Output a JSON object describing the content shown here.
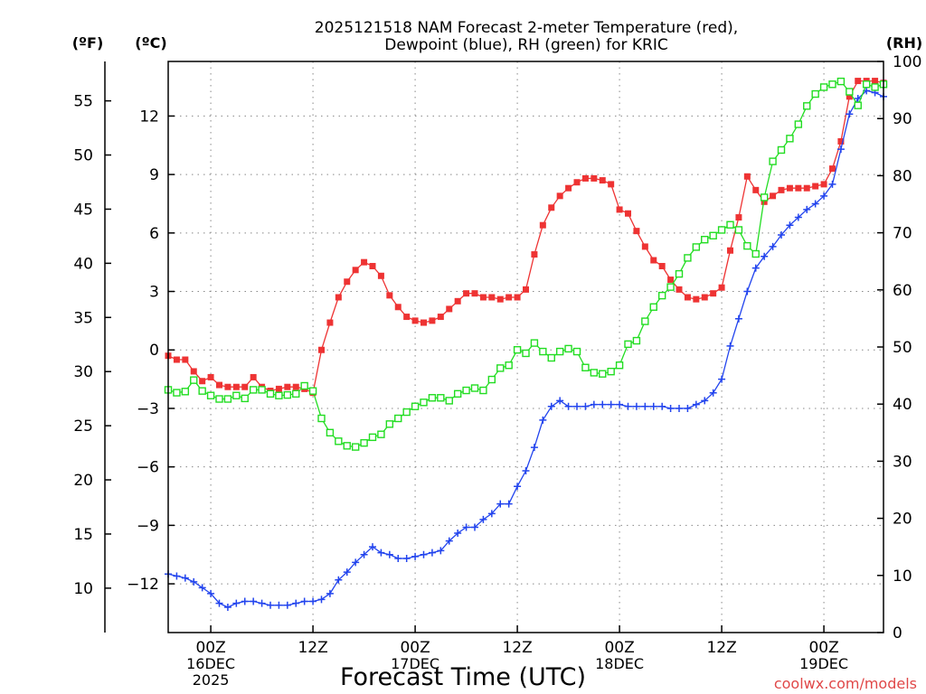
{
  "chart_data": {
    "type": "line",
    "title": [
      "2025121518 NAM Forecast 2-meter Temperature (red),",
      "Dewpoint (blue), RH (green) for KRIC"
    ],
    "xlabel": "Forecast Time (UTC)",
    "credit": "coolwx.com/models",
    "left_unit_f": "(ºF)",
    "left_unit_c": "(ºC)",
    "right_unit": "(RH)",
    "x_unit": "forecast hour from 2025121518",
    "xlim": [
      1,
      85
    ],
    "celsius_ticks": [
      "12",
      "9",
      "6",
      "3",
      "0",
      "−3",
      "−6",
      "−9",
      "−12"
    ],
    "celsius_values": [
      12,
      9,
      6,
      3,
      0,
      -3,
      -6,
      -9,
      -12
    ],
    "ylim_c": [
      -14.5,
      14.8
    ],
    "fahrenheit_ticks": [
      "55",
      "50",
      "45",
      "40",
      "35",
      "30",
      "25",
      "20",
      "15",
      "10"
    ],
    "fahrenheit_values": [
      55,
      50,
      45,
      40,
      35,
      30,
      25,
      20,
      15,
      10
    ],
    "rh_ticks": [
      "100",
      "90",
      "80",
      "70",
      "60",
      "50",
      "40",
      "30",
      "20",
      "10",
      "0"
    ],
    "rh_values": [
      100,
      90,
      80,
      70,
      60,
      50,
      40,
      30,
      20,
      10,
      0
    ],
    "ylim_rh": [
      0,
      100
    ],
    "x_ticks": [
      {
        "hour": 6,
        "lines": [
          "00Z",
          "16DEC",
          "2025"
        ]
      },
      {
        "hour": 18,
        "lines": [
          "12Z"
        ]
      },
      {
        "hour": 30,
        "lines": [
          "00Z",
          "17DEC"
        ]
      },
      {
        "hour": 42,
        "lines": [
          "12Z"
        ]
      },
      {
        "hour": 54,
        "lines": [
          "00Z",
          "18DEC"
        ]
      },
      {
        "hour": 66,
        "lines": [
          "12Z"
        ]
      },
      {
        "hour": 78,
        "lines": [
          "00Z",
          "19DEC"
        ]
      }
    ],
    "grid": true,
    "series": [
      {
        "name": "Temperature",
        "unit": "°C",
        "color": "#ee3333",
        "marker": "filled-square",
        "x": [
          1,
          2,
          3,
          4,
          5,
          6,
          7,
          8,
          9,
          10,
          11,
          12,
          13,
          14,
          15,
          16,
          17,
          18,
          19,
          20,
          21,
          22,
          23,
          24,
          25,
          26,
          27,
          28,
          29,
          30,
          31,
          32,
          33,
          34,
          35,
          36,
          37,
          38,
          39,
          40,
          41,
          42,
          43,
          44,
          45,
          46,
          47,
          48,
          49,
          50,
          51,
          52,
          53,
          54,
          55,
          56,
          57,
          58,
          59,
          60,
          61,
          62,
          63,
          64,
          65,
          66,
          67,
          68,
          69,
          70,
          71,
          72,
          73,
          74,
          75,
          76,
          77,
          78,
          79,
          80,
          81,
          82,
          83,
          84,
          85
        ],
        "values": [
          -0.3,
          -0.5,
          -0.5,
          -1.1,
          -1.6,
          -1.4,
          -1.8,
          -1.9,
          -1.9,
          -1.9,
          -1.4,
          -1.9,
          -2.1,
          -2.0,
          -1.9,
          -1.9,
          -2.0,
          -2.2,
          0.0,
          1.4,
          2.7,
          3.5,
          4.1,
          4.5,
          4.3,
          3.8,
          2.8,
          2.2,
          1.7,
          1.5,
          1.4,
          1.5,
          1.7,
          2.1,
          2.5,
          2.9,
          2.9,
          2.7,
          2.7,
          2.6,
          2.7,
          2.7,
          3.1,
          4.9,
          6.4,
          7.3,
          7.9,
          8.3,
          8.6,
          8.8,
          8.8,
          8.7,
          8.5,
          7.2,
          7.0,
          6.1,
          5.3,
          4.6,
          4.3,
          3.6,
          3.1,
          2.7,
          2.6,
          2.7,
          2.9,
          3.2,
          5.1,
          6.8,
          8.9,
          8.2,
          7.6,
          7.9,
          8.2,
          8.3,
          8.3,
          8.3,
          8.4,
          8.5,
          9.3,
          10.7,
          13.0,
          13.8,
          13.8,
          13.8,
          13.7
        ]
      },
      {
        "name": "Dewpoint",
        "unit": "°C",
        "color": "#2244ee",
        "marker": "plus",
        "x": [
          1,
          2,
          3,
          4,
          5,
          6,
          7,
          8,
          9,
          10,
          11,
          12,
          13,
          14,
          15,
          16,
          17,
          18,
          19,
          20,
          21,
          22,
          23,
          24,
          25,
          26,
          27,
          28,
          29,
          30,
          31,
          32,
          33,
          34,
          35,
          36,
          37,
          38,
          39,
          40,
          41,
          42,
          43,
          44,
          45,
          46,
          47,
          48,
          49,
          50,
          51,
          52,
          53,
          54,
          55,
          56,
          57,
          58,
          59,
          60,
          61,
          62,
          63,
          64,
          65,
          66,
          67,
          68,
          69,
          70,
          71,
          72,
          73,
          74,
          75,
          76,
          77,
          78,
          79,
          80,
          81,
          82,
          83,
          84,
          85
        ],
        "values": [
          -11.5,
          -11.6,
          -11.7,
          -11.9,
          -12.2,
          -12.5,
          -13.0,
          -13.2,
          -13.0,
          -12.9,
          -12.9,
          -13.0,
          -13.1,
          -13.1,
          -13.1,
          -13.0,
          -12.9,
          -12.9,
          -12.8,
          -12.5,
          -11.8,
          -11.4,
          -10.9,
          -10.5,
          -10.1,
          -10.4,
          -10.5,
          -10.7,
          -10.7,
          -10.6,
          -10.5,
          -10.4,
          -10.3,
          -9.8,
          -9.4,
          -9.1,
          -9.1,
          -8.7,
          -8.4,
          -7.9,
          -7.9,
          -7.0,
          -6.2,
          -5.0,
          -3.6,
          -2.9,
          -2.6,
          -2.9,
          -2.9,
          -2.9,
          -2.8,
          -2.8,
          -2.8,
          -2.8,
          -2.9,
          -2.9,
          -2.9,
          -2.9,
          -2.9,
          -3.0,
          -3.0,
          -3.0,
          -2.8,
          -2.6,
          -2.2,
          -1.5,
          0.2,
          1.6,
          3.0,
          4.2,
          4.8,
          5.3,
          5.9,
          6.4,
          6.8,
          7.2,
          7.5,
          7.9,
          8.5,
          10.3,
          12.1,
          12.9,
          13.3,
          13.2,
          13.0
        ]
      },
      {
        "name": "RH",
        "unit": "%",
        "color": "#22dd22",
        "marker": "open-square",
        "x": [
          1,
          2,
          3,
          4,
          5,
          6,
          7,
          8,
          9,
          10,
          11,
          12,
          13,
          14,
          15,
          16,
          17,
          18,
          19,
          20,
          21,
          22,
          23,
          24,
          25,
          26,
          27,
          28,
          29,
          30,
          31,
          32,
          33,
          34,
          35,
          36,
          37,
          38,
          39,
          40,
          41,
          42,
          43,
          44,
          45,
          46,
          47,
          48,
          49,
          50,
          51,
          52,
          53,
          54,
          55,
          56,
          57,
          58,
          59,
          60,
          61,
          62,
          63,
          64,
          65,
          66,
          67,
          68,
          69,
          70,
          71,
          72,
          73,
          74,
          75,
          76,
          77,
          78,
          79,
          80,
          81,
          82,
          83,
          84,
          85
        ],
        "values": [
          42.5,
          42.0,
          42.2,
          44.2,
          42.3,
          41.5,
          40.9,
          40.9,
          41.5,
          41.0,
          42.5,
          42.5,
          41.8,
          41.5,
          41.6,
          41.8,
          43.2,
          42.3,
          37.5,
          35.0,
          33.5,
          32.7,
          32.5,
          33.2,
          34.2,
          34.7,
          36.5,
          37.5,
          38.6,
          39.6,
          40.3,
          41.1,
          41.1,
          40.6,
          41.8,
          42.4,
          42.8,
          42.4,
          44.3,
          46.3,
          46.8,
          49.5,
          48.9,
          50.7,
          49.2,
          48.1,
          49.2,
          49.7,
          49.2,
          46.4,
          45.5,
          45.3,
          45.7,
          46.8,
          50.5,
          51.1,
          54.5,
          57.0,
          59.0,
          60.5,
          62.8,
          65.6,
          67.5,
          68.8,
          69.5,
          70.5,
          71.4,
          70.5,
          67.7,
          66.3,
          76.2,
          82.5,
          84.5,
          86.5,
          89.0,
          92.2,
          94.3,
          95.5,
          96.0,
          96.5,
          94.7,
          92.3,
          96.0,
          95.5,
          96.0
        ]
      }
    ]
  }
}
